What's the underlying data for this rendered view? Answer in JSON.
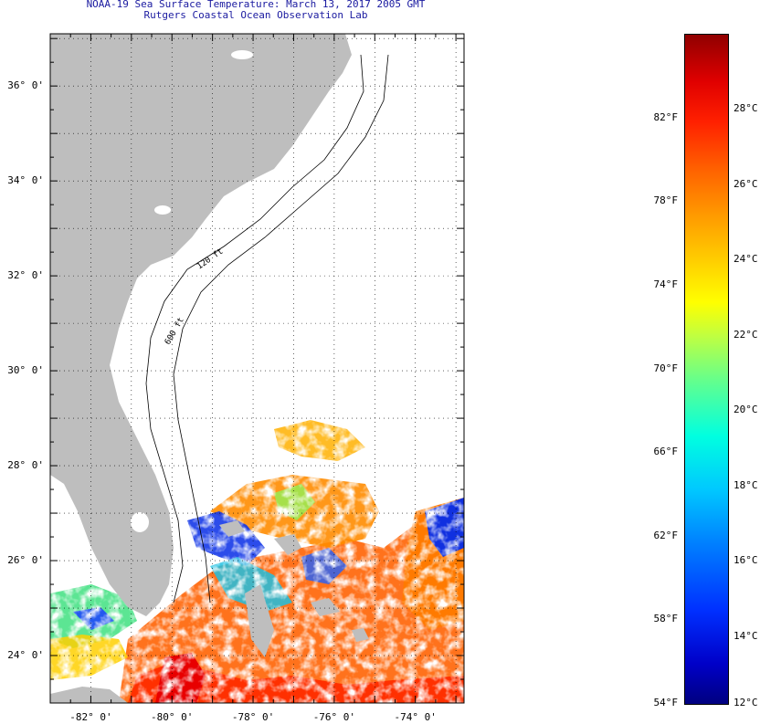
{
  "title": {
    "line1": "NOAA-19 Sea Surface Temperature:  March 13, 2017 2005 GMT",
    "line2": "Rutgers Coastal Ocean Observation Lab"
  },
  "map": {
    "lon_range": [
      -83,
      -72.8
    ],
    "lat_range": [
      23,
      37.1
    ],
    "land_color": "#bebebe",
    "no_data_color": "#ffffff",
    "grid": "dotted",
    "isobath_labels": [
      "120 ft",
      "600 ft"
    ],
    "lat_ticks": [
      {
        "value": 36,
        "label": "36° 0'"
      },
      {
        "value": 34,
        "label": "34° 0'"
      },
      {
        "value": 32,
        "label": "32° 0'"
      },
      {
        "value": 30,
        "label": "30° 0'"
      },
      {
        "value": 28,
        "label": "28° 0'"
      },
      {
        "value": 26,
        "label": "26° 0'"
      },
      {
        "value": 24,
        "label": "24° 0'"
      }
    ],
    "lon_ticks": [
      {
        "value": -82,
        "label": "-82° 0'"
      },
      {
        "value": -80,
        "label": "-80° 0'"
      },
      {
        "value": -78,
        "label": "-78° 0'"
      },
      {
        "value": -76,
        "label": "-76° 0'"
      },
      {
        "value": -74,
        "label": "-74° 0'"
      }
    ]
  },
  "colorbar": {
    "min_f": 54,
    "max_f": 86,
    "fahrenheit": [
      {
        "value": 82,
        "label": "82°F"
      },
      {
        "value": 78,
        "label": "78°F"
      },
      {
        "value": 74,
        "label": "74°F"
      },
      {
        "value": 70,
        "label": "70°F"
      },
      {
        "value": 66,
        "label": "66°F"
      },
      {
        "value": 62,
        "label": "62°F"
      },
      {
        "value": 58,
        "label": "58°F"
      },
      {
        "value": 54,
        "label": "54°F"
      }
    ],
    "celsius": [
      {
        "value": 28,
        "label": "28°C"
      },
      {
        "value": 26,
        "label": "26°C"
      },
      {
        "value": 24,
        "label": "24°C"
      },
      {
        "value": 22,
        "label": "22°C"
      },
      {
        "value": 20,
        "label": "20°C"
      },
      {
        "value": 18,
        "label": "18°C"
      },
      {
        "value": 16,
        "label": "16°C"
      },
      {
        "value": 14,
        "label": "14°C"
      },
      {
        "value": 12,
        "label": "12°C"
      }
    ]
  }
}
